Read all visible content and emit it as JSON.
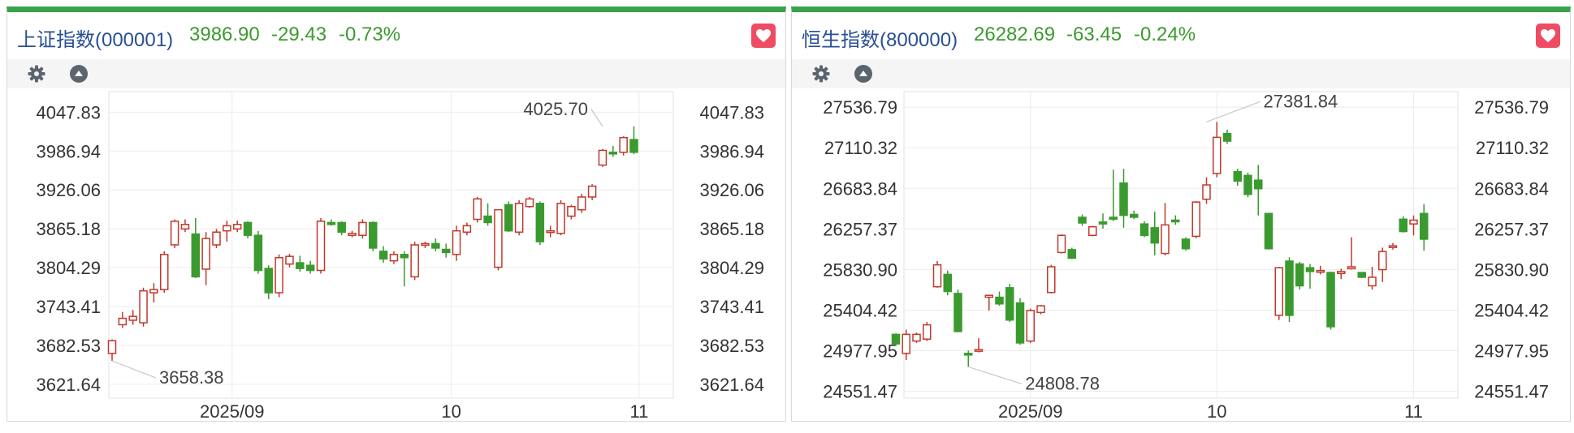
{
  "charts": [
    {
      "name": "上证指数(000001)",
      "price": "3986.90",
      "change": "-29.43",
      "pct": "-0.73%",
      "icons": {
        "favorite": "heart-icon",
        "settings": "gear-icon",
        "collapse": "triangle-up-icon"
      }
    },
    {
      "name": "恒生指数(800000)",
      "price": "26282.69",
      "change": "-63.45",
      "pct": "-0.24%",
      "icons": {
        "favorite": "heart-icon",
        "settings": "gear-icon",
        "collapse": "triangle-up-icon"
      }
    }
  ],
  "colors": {
    "up": "#c0392b",
    "down": "#3a9a2f",
    "accent": "#3aa34a",
    "title": "#2a4f92",
    "price": "#3b9a2f",
    "favorite": "#ee4c63"
  },
  "chart_data": [
    {
      "type": "candlestick",
      "title": "",
      "ylim": [
        3600,
        4080
      ],
      "ytick_values": [
        4047.83,
        3986.94,
        3926.06,
        3865.18,
        3804.29,
        3743.41,
        3682.53,
        3621.64
      ],
      "yticks": [
        "4047.83",
        "3986.94",
        "3926.06",
        "3865.18",
        "3804.29",
        "3743.41",
        "3682.53",
        "3621.64"
      ],
      "xticks": [
        {
          "label": "2025/09",
          "index": 11.5
        },
        {
          "label": "10",
          "index": 32.5
        },
        {
          "label": "11",
          "index": 50.5
        }
      ],
      "annotations": [
        {
          "text": "3658.38",
          "index": 0,
          "value": 3658.38,
          "side": "low"
        },
        {
          "text": "4025.70",
          "index": 47,
          "value": 4025.7,
          "side": "high"
        }
      ],
      "grid": true,
      "ohlc": [
        [
          3670,
          3692,
          3658.38,
          3690
        ],
        [
          3715,
          3735,
          3710,
          3725
        ],
        [
          3722,
          3738,
          3715,
          3728
        ],
        [
          3718,
          3773,
          3712,
          3768
        ],
        [
          3765,
          3780,
          3750,
          3770
        ],
        [
          3770,
          3830,
          3765,
          3825
        ],
        [
          3840,
          3880,
          3835,
          3877
        ],
        [
          3865,
          3880,
          3860,
          3872
        ],
        [
          3857,
          3882,
          3788,
          3790
        ],
        [
          3802,
          3860,
          3777,
          3850
        ],
        [
          3840,
          3865,
          3835,
          3860
        ],
        [
          3862,
          3878,
          3845,
          3870
        ],
        [
          3865,
          3878,
          3860,
          3872
        ],
        [
          3875,
          3877,
          3850,
          3855
        ],
        [
          3855,
          3862,
          3795,
          3800
        ],
        [
          3803,
          3808,
          3755,
          3765
        ],
        [
          3765,
          3825,
          3758,
          3820
        ],
        [
          3810,
          3826,
          3805,
          3822
        ],
        [
          3812,
          3823,
          3798,
          3803
        ],
        [
          3808,
          3815,
          3795,
          3800
        ],
        [
          3800,
          3882,
          3795,
          3877
        ],
        [
          3875,
          3880,
          3870,
          3872
        ],
        [
          3875,
          3877,
          3855,
          3860
        ],
        [
          3855,
          3862,
          3852,
          3858
        ],
        [
          3855,
          3880,
          3850,
          3875
        ],
        [
          3875,
          3877,
          3830,
          3835
        ],
        [
          3830,
          3838,
          3812,
          3818
        ],
        [
          3815,
          3830,
          3810,
          3825
        ],
        [
          3825,
          3830,
          3775,
          3820
        ],
        [
          3790,
          3845,
          3785,
          3840
        ],
        [
          3840,
          3845,
          3835,
          3842
        ],
        [
          3842,
          3850,
          3830,
          3835
        ],
        [
          3833,
          3842,
          3820,
          3828
        ],
        [
          3825,
          3870,
          3815,
          3862
        ],
        [
          3860,
          3875,
          3855,
          3870
        ],
        [
          3880,
          3915,
          3875,
          3912
        ],
        [
          3885,
          3905,
          3870,
          3875
        ],
        [
          3805,
          3895,
          3800,
          3895
        ],
        [
          3903,
          3908,
          3860,
          3862
        ],
        [
          3860,
          3910,
          3855,
          3905
        ],
        [
          3900,
          3915,
          3898,
          3912
        ],
        [
          3905,
          3908,
          3840,
          3845
        ],
        [
          3860,
          3870,
          3852,
          3862
        ],
        [
          3858,
          3910,
          3855,
          3905
        ],
        [
          3885,
          3903,
          3880,
          3900
        ],
        [
          3895,
          3920,
          3890,
          3915
        ],
        [
          3915,
          3935,
          3910,
          3932
        ],
        [
          3965,
          3990,
          3962,
          3988
        ],
        [
          3985,
          3995,
          3978,
          3983
        ],
        [
          3985,
          4010,
          3980,
          4008
        ],
        [
          4005,
          4025.7,
          3982,
          3985
        ]
      ]
    },
    {
      "type": "candlestick",
      "title": "",
      "ylim": [
        24480,
        27700
      ],
      "ytick_values": [
        27536.79,
        27110.32,
        26683.84,
        26257.37,
        25830.9,
        25404.42,
        24977.95,
        24551.47
      ],
      "yticks": [
        "27536.79",
        "27110.32",
        "26683.84",
        "26257.37",
        "25830.90",
        "25404.42",
        "24977.95",
        "24551.47"
      ],
      "xticks": [
        {
          "label": "2025/09",
          "index": 13
        },
        {
          "label": "10",
          "index": 31
        },
        {
          "label": "11",
          "index": 50
        }
      ],
      "annotations": [
        {
          "text": "24808.78",
          "index": 7,
          "value": 24808.78,
          "side": "low"
        },
        {
          "text": "27381.84",
          "index": 30,
          "value": 27381.84,
          "side": "high"
        }
      ],
      "grid": true,
      "ohlc": [
        [
          25150,
          25160,
          25030,
          25050
        ],
        [
          24950,
          25200,
          24880,
          25150
        ],
        [
          25080,
          25170,
          25060,
          25150
        ],
        [
          25100,
          25280,
          25080,
          25250
        ],
        [
          25650,
          25920,
          25640,
          25880
        ],
        [
          25780,
          25820,
          25560,
          25600
        ],
        [
          25580,
          25620,
          25170,
          25180
        ],
        [
          24950,
          24980,
          24808.78,
          24940
        ],
        [
          24980,
          25110,
          24960,
          24990
        ],
        [
          25540,
          25560,
          25400,
          25560
        ],
        [
          25540,
          25600,
          25450,
          25470
        ],
        [
          25640,
          25680,
          25280,
          25300
        ],
        [
          25480,
          25530,
          25040,
          25060
        ],
        [
          25080,
          25420,
          25060,
          25400
        ],
        [
          25380,
          25460,
          25360,
          25450
        ],
        [
          25590,
          25880,
          25580,
          25860
        ],
        [
          26010,
          26200,
          26000,
          26190
        ],
        [
          26040,
          26060,
          25940,
          25950
        ],
        [
          26380,
          26410,
          26290,
          26320
        ],
        [
          26190,
          26290,
          26180,
          26280
        ],
        [
          26330,
          26420,
          26260,
          26310
        ],
        [
          26380,
          26880,
          26340,
          26360
        ],
        [
          26740,
          26890,
          26270,
          26400
        ],
        [
          26410,
          26450,
          26360,
          26380
        ],
        [
          26310,
          26340,
          26170,
          26190
        ],
        [
          26270,
          26440,
          25980,
          26110
        ],
        [
          26000,
          26530,
          25980,
          26300
        ],
        [
          26350,
          26400,
          26300,
          26340
        ],
        [
          26150,
          26170,
          26030,
          26050
        ],
        [
          26180,
          26550,
          26160,
          26540
        ],
        [
          26570,
          26800,
          26520,
          26720
        ],
        [
          26840,
          27381.84,
          26800,
          27220
        ],
        [
          27260,
          27300,
          27150,
          27180
        ],
        [
          26860,
          26890,
          26710,
          26760
        ],
        [
          26820,
          26850,
          26590,
          26620
        ],
        [
          26770,
          26930,
          26400,
          26680
        ],
        [
          26420,
          26420,
          26040,
          26050
        ],
        [
          25350,
          25860,
          25300,
          25850
        ],
        [
          25920,
          25960,
          25280,
          25350
        ],
        [
          25890,
          25910,
          25620,
          25660
        ],
        [
          25850,
          25890,
          25630,
          25810
        ],
        [
          25820,
          25870,
          25780,
          25820
        ],
        [
          25800,
          25810,
          25200,
          25230
        ],
        [
          25790,
          25840,
          25730,
          25810
        ],
        [
          25840,
          26170,
          25830,
          25860
        ],
        [
          25800,
          25800,
          25740,
          25750
        ],
        [
          25660,
          25860,
          25620,
          25750
        ],
        [
          25830,
          26060,
          25700,
          26020
        ],
        [
          26080,
          26110,
          26040,
          26080
        ],
        [
          26360,
          26390,
          26220,
          26230
        ],
        [
          26310,
          26400,
          26190,
          26350
        ],
        [
          26420,
          26520,
          26030,
          26150
        ]
      ]
    }
  ]
}
